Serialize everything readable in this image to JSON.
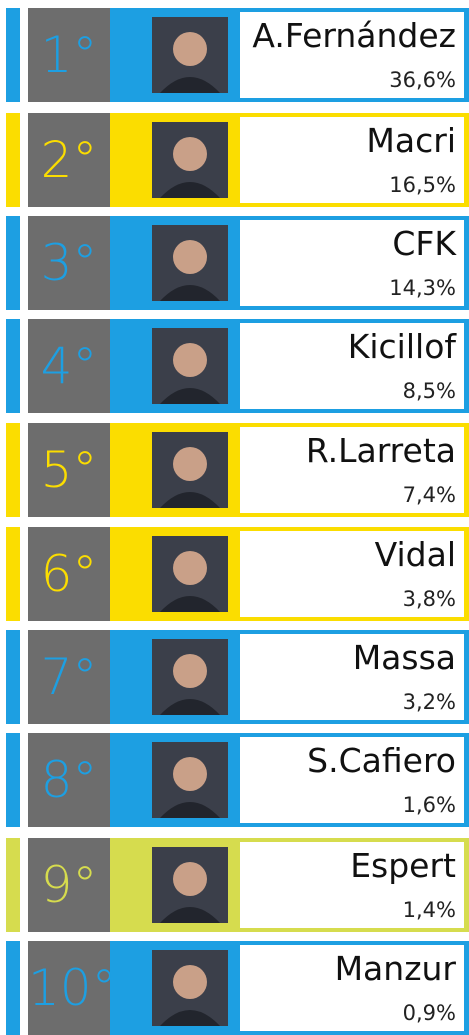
{
  "ranking": [
    {
      "rank": "1°",
      "name": "A.Fernández",
      "value": "36,6%",
      "color": "#1d9fe2"
    },
    {
      "rank": "2°",
      "name": "Macri",
      "value": "16,5%",
      "color": "#fbdd00"
    },
    {
      "rank": "3°",
      "name": "CFK",
      "value": "14,3%",
      "color": "#1d9fe2"
    },
    {
      "rank": "4°",
      "name": "Kicillof",
      "value": "8,5%",
      "color": "#1d9fe2"
    },
    {
      "rank": "5°",
      "name": "R.Larreta",
      "value": "7,4%",
      "color": "#fbdd00"
    },
    {
      "rank": "6°",
      "name": "Vidal",
      "value": "3,8%",
      "color": "#fbdd00"
    },
    {
      "rank": "7°",
      "name": "Massa",
      "value": "3,2%",
      "color": "#1d9fe2"
    },
    {
      "rank": "8°",
      "name": "S.Cafiero",
      "value": "1,6%",
      "color": "#1d9fe2"
    },
    {
      "rank": "9°",
      "name": "Espert",
      "value": "1,4%",
      "color": "#d6dc4e"
    },
    {
      "rank": "10°",
      "name": "Manzur",
      "value": "0,9%",
      "color": "#1d9fe2"
    }
  ]
}
